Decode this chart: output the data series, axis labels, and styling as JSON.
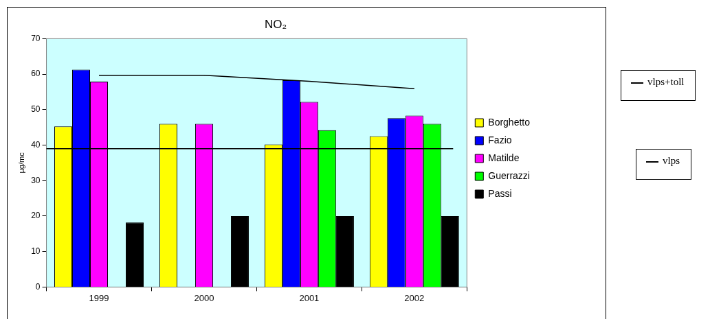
{
  "chart_data": {
    "type": "bar",
    "title": "NO₂",
    "ylabel": "µg/mc",
    "categories": [
      "1999",
      "2000",
      "2001",
      "2002"
    ],
    "series": [
      {
        "name": "Borghetto",
        "color": "#ffff00",
        "values": [
          45.3,
          46,
          40.2,
          42.5
        ]
      },
      {
        "name": "Fazio",
        "color": "#0000ff",
        "values": [
          61.3,
          null,
          58.3,
          47.6
        ]
      },
      {
        "name": "Matilde",
        "color": "#ff00ff",
        "values": [
          57.9,
          46,
          52.2,
          48.3
        ]
      },
      {
        "name": "Guerrazzi",
        "color": "#00ff00",
        "values": [
          null,
          null,
          44.2,
          46
        ]
      },
      {
        "name": "Passi",
        "color": "#000000",
        "values": [
          18.2,
          20,
          20,
          20
        ]
      },
      {
        "name": "vlps+toll",
        "type": "line",
        "color": "#000000",
        "values": [
          59.7,
          59.7,
          58,
          55.9
        ]
      }
    ],
    "ylim": [
      0,
      70
    ],
    "yticks": [
      0,
      10,
      20,
      30,
      40,
      50,
      60,
      70
    ],
    "grid": false,
    "legend": "right",
    "ref_lines": [
      {
        "axis": "y",
        "value": 39,
        "label": "vlps",
        "color": "#000000"
      }
    ]
  }
}
